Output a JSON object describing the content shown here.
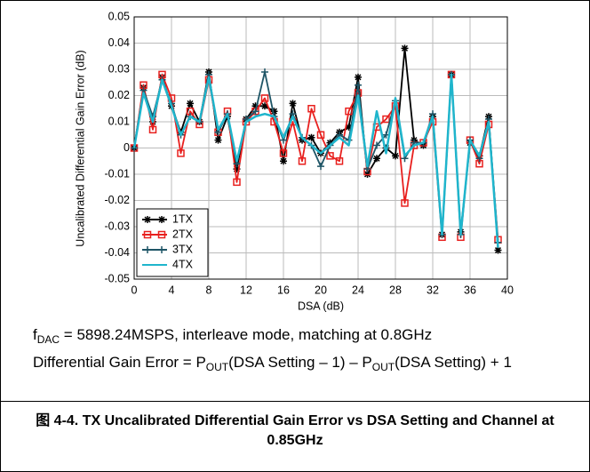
{
  "chart_data": {
    "type": "line",
    "title": "图 4-4. TX Uncalibrated Differential Gain Error vs DSA Setting and Channel at 0.85GHz",
    "xlabel": "DSA (dB)",
    "ylabel": "Uncalibrated Differential Gain Error (dB)",
    "notes": [
      [
        "f",
        "DAC",
        " = 5898.24MSPS, interleave mode, matching at 0.8GHz"
      ],
      [
        "Differential Gain Error = P",
        "OUT",
        "(DSA Setting – 1) – P",
        "OUT",
        "(DSA Setting) + 1"
      ]
    ],
    "x": [
      0,
      1,
      2,
      3,
      4,
      5,
      6,
      7,
      8,
      9,
      10,
      11,
      12,
      13,
      14,
      15,
      16,
      17,
      18,
      19,
      20,
      21,
      22,
      23,
      24,
      25,
      26,
      27,
      28,
      29,
      30,
      31,
      32,
      33,
      34,
      35,
      36,
      37,
      38,
      39
    ],
    "xlim": [
      0,
      40
    ],
    "xticks": [
      0,
      4,
      8,
      12,
      16,
      20,
      24,
      28,
      32,
      36,
      40
    ],
    "ylim": [
      -0.05,
      0.05
    ],
    "yticks": [
      -0.05,
      -0.04,
      -0.03,
      -0.02,
      -0.01,
      0,
      0.01,
      0.02,
      0.03,
      0.04,
      0.05
    ],
    "grid": true,
    "legend": "lower left",
    "series": [
      {
        "name": "1TX",
        "color": "#000000",
        "marker": "asterisk",
        "values": [
          0,
          0.023,
          0.01,
          0.027,
          0.016,
          0.006,
          0.017,
          0.01,
          0.029,
          0.003,
          0.012,
          -0.008,
          0.011,
          0.016,
          0.016,
          0.014,
          -0.005,
          0.017,
          0.003,
          0.004,
          -0.002,
          0.002,
          0.006,
          0.008,
          0.027,
          -0.01,
          -0.004,
          0,
          -0.003,
          0.038,
          0.003,
          0.001,
          0.012,
          -0.033,
          0.028,
          -0.032,
          0.002,
          -0.003,
          0.012,
          -0.039
        ]
      },
      {
        "name": "2TX",
        "color": "#e8201e",
        "marker": "square",
        "values": [
          0,
          0.024,
          0.007,
          0.028,
          0.019,
          -0.002,
          0.014,
          0.009,
          0.026,
          0.006,
          0.014,
          -0.013,
          0.01,
          0.014,
          0.019,
          0.01,
          -0.002,
          0.01,
          -0.005,
          0.015,
          0.005,
          -0.003,
          -0.005,
          0.014,
          0.021,
          -0.009,
          0.008,
          0.011,
          0.016,
          -0.021,
          0.001,
          0.002,
          0.01,
          -0.034,
          0.028,
          -0.034,
          0.003,
          -0.006,
          0.009,
          -0.035
        ]
      },
      {
        "name": "3TX",
        "color": "#1e5566",
        "marker": "plus",
        "values": [
          0,
          0.022,
          0.012,
          0.026,
          0.017,
          0.005,
          0.012,
          0.01,
          0.028,
          0.006,
          0.013,
          -0.006,
          0.011,
          0.014,
          0.029,
          0.012,
          0.003,
          0.013,
          0.004,
          0.001,
          -0.007,
          0.001,
          0.005,
          0.003,
          0.024,
          -0.008,
          0.001,
          0.005,
          0.018,
          -0.004,
          0.002,
          0.002,
          0.013,
          -0.033,
          0.028,
          -0.033,
          0.003,
          -0.004,
          0.011,
          -0.036
        ]
      },
      {
        "name": "4TX",
        "color": "#1fb5cc",
        "marker": "none",
        "values": [
          0,
          0.021,
          0.01,
          0.026,
          0.016,
          0.005,
          0.012,
          0.01,
          0.027,
          0.007,
          0.013,
          -0.005,
          0.01,
          0.012,
          0.013,
          0.012,
          0.004,
          0.012,
          0.004,
          0.001,
          -0.002,
          0.001,
          0.004,
          0.001,
          0.02,
          -0.007,
          0.014,
          -0.002,
          0.019,
          -0.003,
          0.001,
          0.002,
          0.012,
          -0.033,
          0.028,
          -0.033,
          0.003,
          -0.003,
          0.01,
          -0.038
        ]
      }
    ]
  }
}
